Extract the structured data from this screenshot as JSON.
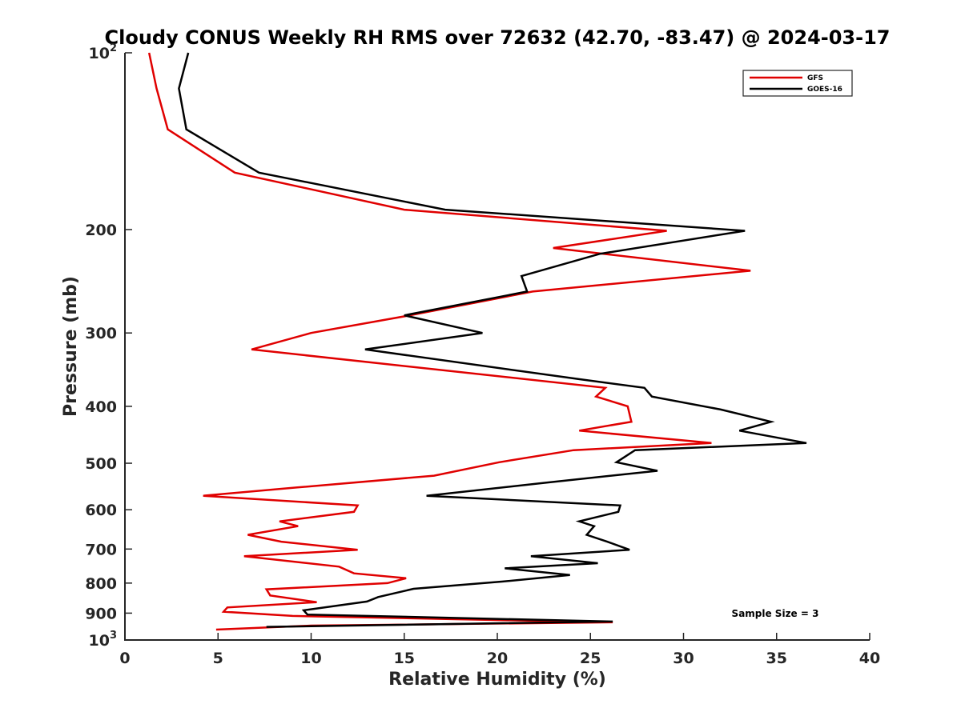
{
  "chart_data": {
    "type": "line",
    "title": "Cloudy CONUS Weekly RH RMS over 72632 (42.70, -83.47) @ 2024-03-17",
    "xlabel": "Relative Humidity (%)",
    "ylabel": "Pressure (mb)",
    "xlim": [
      0,
      40
    ],
    "ylim": [
      100,
      1000
    ],
    "y_scale": "log",
    "y_reversed": true,
    "x_ticks": [
      0,
      5,
      10,
      15,
      20,
      25,
      30,
      35,
      40
    ],
    "y_ticks": [
      {
        "value": 100,
        "base": "10",
        "exp": "2"
      },
      {
        "value": 200,
        "label": "200"
      },
      {
        "value": 300,
        "label": "300"
      },
      {
        "value": 400,
        "label": "400"
      },
      {
        "value": 500,
        "label": "500"
      },
      {
        "value": 600,
        "label": "600"
      },
      {
        "value": 700,
        "label": "700"
      },
      {
        "value": 800,
        "label": "800"
      },
      {
        "value": 900,
        "label": "900"
      },
      {
        "value": 1000,
        "base": "10",
        "exp": "3"
      }
    ],
    "grid": false,
    "legend_position": "top-right",
    "annotation": "Sample Size = 3",
    "series": [
      {
        "name": "GFS",
        "color": "#e00000",
        "points": [
          [
            1.3,
            100
          ],
          [
            1.7,
            115
          ],
          [
            2.3,
            135
          ],
          [
            5.9,
            160
          ],
          [
            15.0,
            185
          ],
          [
            29.1,
            201
          ],
          [
            23.0,
            215
          ],
          [
            33.6,
            235
          ],
          [
            21.9,
            255
          ],
          [
            15.3,
            280
          ],
          [
            10.0,
            300
          ],
          [
            6.8,
            320
          ],
          [
            25.8,
            372
          ],
          [
            25.3,
            385
          ],
          [
            27.0,
            400
          ],
          [
            27.2,
            425
          ],
          [
            24.4,
            440
          ],
          [
            31.5,
            462
          ],
          [
            24.1,
            475
          ],
          [
            20.1,
            498
          ],
          [
            16.6,
            525
          ],
          [
            9.2,
            550
          ],
          [
            4.2,
            568
          ],
          [
            12.5,
            590
          ],
          [
            12.3,
            605
          ],
          [
            8.3,
            628
          ],
          [
            9.3,
            640
          ],
          [
            6.6,
            662
          ],
          [
            8.4,
            680
          ],
          [
            12.5,
            702
          ],
          [
            6.4,
            720
          ],
          [
            11.5,
            750
          ],
          [
            12.3,
            770
          ],
          [
            15.1,
            785
          ],
          [
            14.1,
            800
          ],
          [
            7.6,
            820
          ],
          [
            7.8,
            840
          ],
          [
            10.3,
            862
          ],
          [
            5.5,
            880
          ],
          [
            5.3,
            895
          ],
          [
            9.0,
            910
          ],
          [
            26.2,
            933
          ],
          [
            10.0,
            945
          ],
          [
            4.9,
            960
          ]
        ]
      },
      {
        "name": "GOES-16",
        "color": "#000000",
        "points": [
          [
            3.4,
            100
          ],
          [
            2.9,
            115
          ],
          [
            3.3,
            135
          ],
          [
            7.2,
            160
          ],
          [
            17.2,
            185
          ],
          [
            33.3,
            201
          ],
          [
            25.5,
            220
          ],
          [
            21.3,
            240
          ],
          [
            21.6,
            255
          ],
          [
            15.0,
            280
          ],
          [
            19.2,
            300
          ],
          [
            12.9,
            320
          ],
          [
            24.5,
            360
          ],
          [
            27.9,
            372
          ],
          [
            28.3,
            385
          ],
          [
            32.0,
            405
          ],
          [
            34.7,
            425
          ],
          [
            33.0,
            440
          ],
          [
            36.6,
            462
          ],
          [
            27.4,
            475
          ],
          [
            26.4,
            498
          ],
          [
            28.6,
            515
          ],
          [
            22.5,
            540
          ],
          [
            16.2,
            568
          ],
          [
            26.6,
            590
          ],
          [
            26.5,
            605
          ],
          [
            24.4,
            628
          ],
          [
            25.2,
            640
          ],
          [
            24.8,
            662
          ],
          [
            25.9,
            680
          ],
          [
            27.1,
            702
          ],
          [
            21.8,
            720
          ],
          [
            25.4,
            740
          ],
          [
            20.4,
            755
          ],
          [
            23.9,
            775
          ],
          [
            20.3,
            795
          ],
          [
            15.5,
            818
          ],
          [
            13.6,
            845
          ],
          [
            13.0,
            860
          ],
          [
            9.6,
            890
          ],
          [
            9.8,
            905
          ],
          [
            26.2,
            930
          ],
          [
            7.6,
            950
          ]
        ]
      }
    ]
  }
}
